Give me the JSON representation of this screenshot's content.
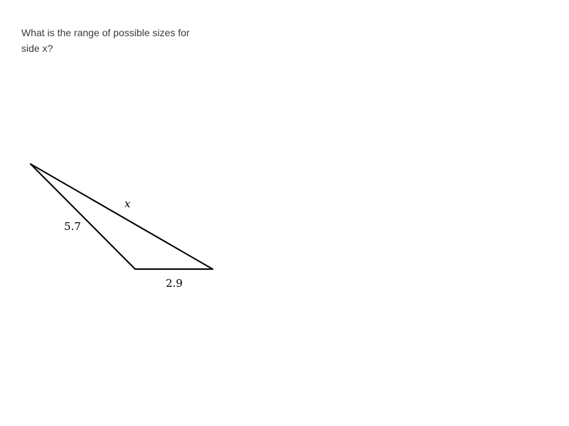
{
  "question": {
    "text": "What is the range of possible sizes for side x?"
  },
  "triangle": {
    "side_labels": {
      "left": "5.7",
      "bottom": "2.9",
      "long": "x"
    },
    "line_color": "#000000"
  }
}
